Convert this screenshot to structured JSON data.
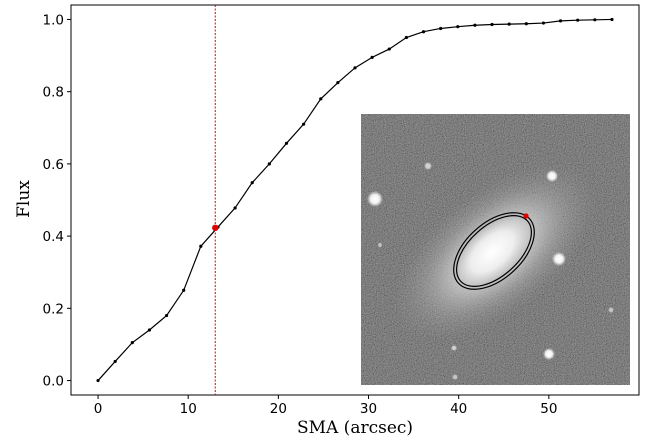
{
  "chart_data": {
    "type": "line",
    "title": "",
    "xlabel": "SMA (arcsec)",
    "ylabel": "Flux",
    "xlim": [
      -3,
      60
    ],
    "ylim": [
      -0.04,
      1.04
    ],
    "xticks": [
      0,
      10,
      20,
      30,
      40,
      50
    ],
    "yticks": [
      0.0,
      0.2,
      0.4,
      0.6,
      0.8,
      1.0
    ],
    "grid": false,
    "legend": "none",
    "series": [
      {
        "color": "#000000",
        "marker": "point",
        "x": [
          0,
          1.9,
          3.8,
          5.7,
          7.6,
          9.5,
          11.4,
          13.3,
          15.2,
          17.1,
          19.0,
          20.9,
          22.8,
          24.7,
          26.6,
          28.5,
          30.4,
          32.3,
          34.2,
          36.1,
          38.0,
          39.9,
          41.8,
          43.7,
          45.6,
          47.5,
          49.4,
          51.3,
          53.2,
          55.1,
          57.0
        ],
        "y": [
          0.0,
          0.053,
          0.105,
          0.14,
          0.18,
          0.25,
          0.372,
          0.425,
          0.478,
          0.548,
          0.6,
          0.657,
          0.71,
          0.78,
          0.825,
          0.866,
          0.895,
          0.918,
          0.95,
          0.966,
          0.975,
          0.98,
          0.984,
          0.986,
          0.987,
          0.988,
          0.99,
          0.996,
          0.998,
          0.999,
          1.0
        ]
      }
    ],
    "annotations": {
      "vline": {
        "x": 13.0,
        "color": "#e00000",
        "style": "dotted"
      },
      "highlight_point": {
        "x": 13.0,
        "y": 0.423,
        "color": "#e00000"
      }
    },
    "inset": {
      "content": "grayscale galaxy image with fitted isophote ellipse",
      "ellipse_color": "#000000",
      "marker_color": "#e00000"
    }
  }
}
